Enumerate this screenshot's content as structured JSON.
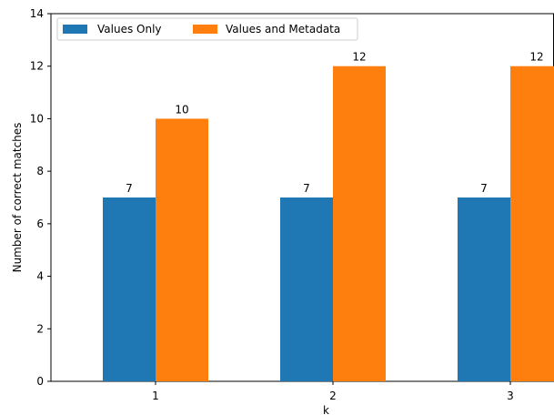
{
  "chart_data": {
    "type": "bar",
    "categories": [
      "1",
      "2",
      "3"
    ],
    "series": [
      {
        "name": "Values Only",
        "values": [
          7,
          7,
          7
        ],
        "color": "#1f77b4"
      },
      {
        "name": "Values and Metadata",
        "values": [
          10,
          12,
          12
        ],
        "color": "#ff7f0e"
      }
    ],
    "xlabel": "k",
    "ylabel": "Number of correct matches",
    "ylim": [
      0,
      14
    ],
    "yticks": [
      0,
      2,
      4,
      6,
      8,
      10,
      12,
      14
    ],
    "grid": false,
    "legend_position": "top-left",
    "data_labels": true
  }
}
